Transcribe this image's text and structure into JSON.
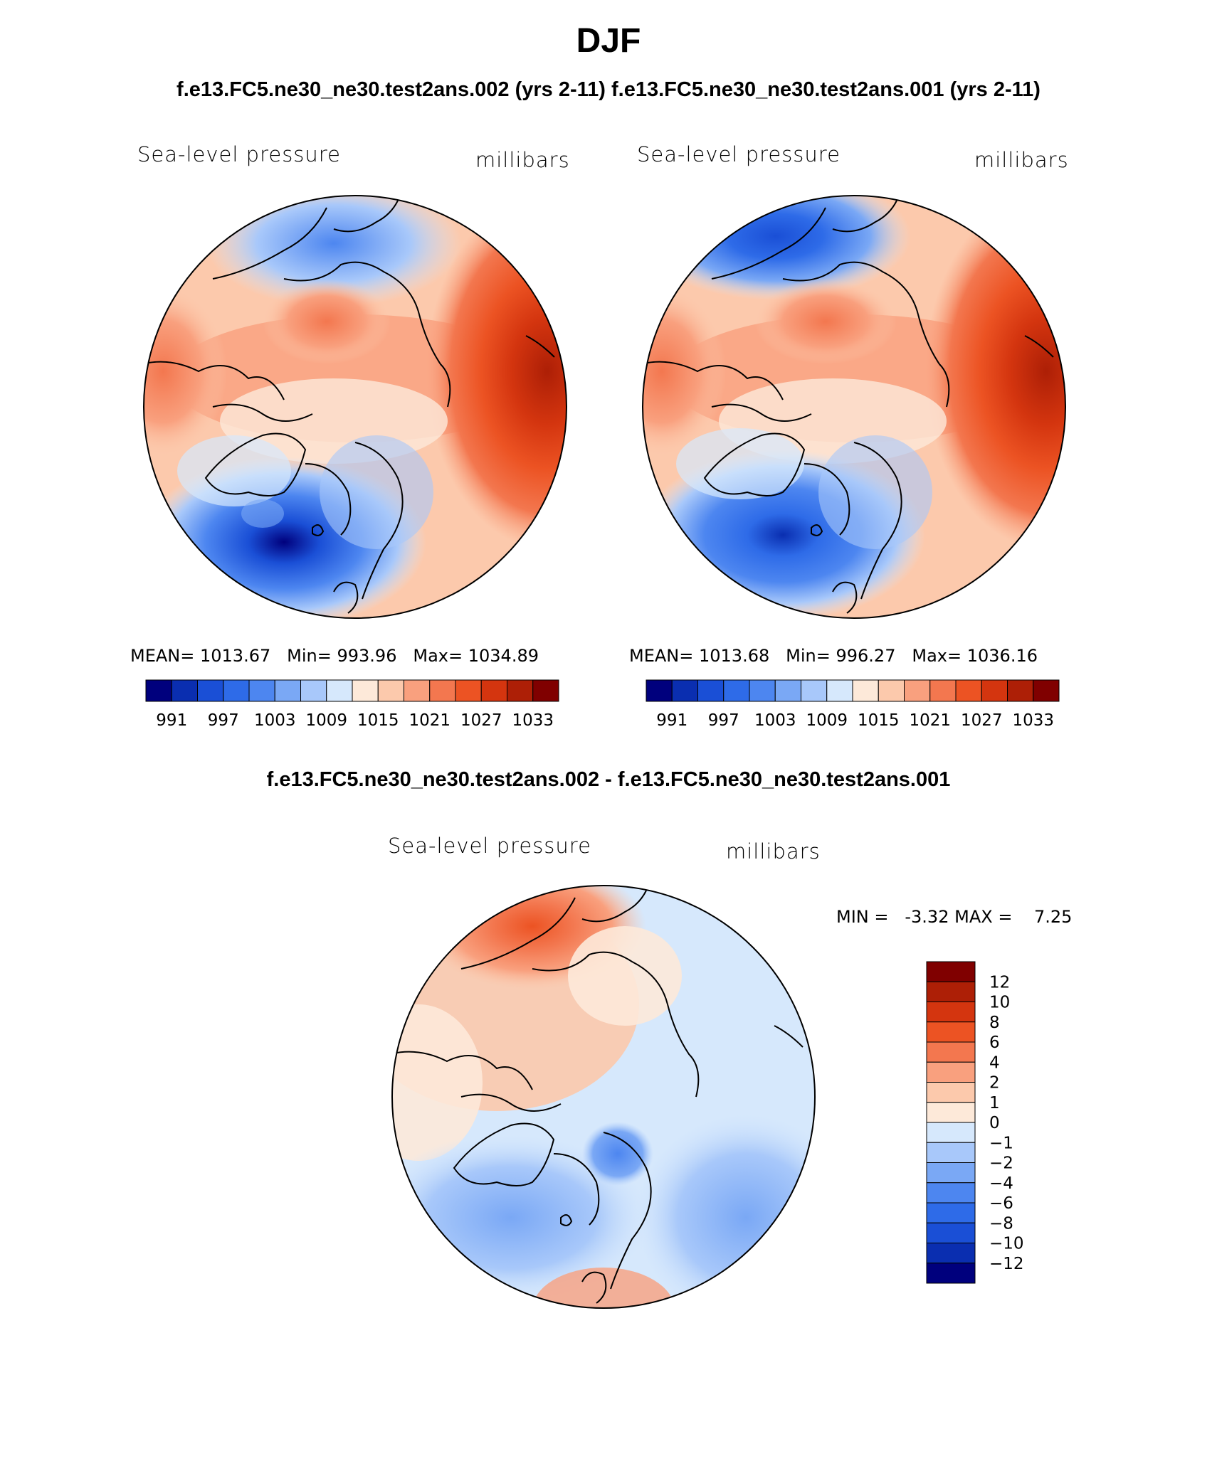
{
  "figure": {
    "season": "DJF",
    "subtitle": "f.e13.FC5.ne30_ne30.test2ans.002 (yrs 2-11) f.e13.FC5.ne30_ne30.test2ans.001 (yrs 2-11)",
    "diff_title": "f.e13.FC5.ne30_ne30.test2ans.002 - f.e13.FC5.ne30_ne30.test2ans.001"
  },
  "chart_data": [
    {
      "type": "heatmap",
      "projection": "north-polar-stereographic",
      "variable": "Sea-level pressure",
      "units": "millibars",
      "case": "f.e13.FC5.ne30_ne30.test2ans.002 (yrs 2-11)",
      "stats": {
        "mean_label": "MEAN=",
        "mean": "1013.67",
        "min_label": "Min=",
        "min": "993.96",
        "max_label": "Max=",
        "max": "1034.89"
      },
      "levels": [
        991,
        994,
        997,
        1000,
        1003,
        1006,
        1009,
        1012,
        1015,
        1018,
        1021,
        1024,
        1027,
        1030,
        1033
      ],
      "tick_labels": [
        "991",
        "997",
        "1003",
        "1009",
        "1015",
        "1021",
        "1027",
        "1033"
      ],
      "colors": [
        "#00007d",
        "#0a2eb0",
        "#1a4fd6",
        "#2e6be8",
        "#4d86f0",
        "#7aa8f5",
        "#a8c8fa",
        "#d6e8fc",
        "#fde9d9",
        "#fcc9ac",
        "#f9a07e",
        "#f3774f",
        "#ec5323",
        "#d4350f",
        "#ad1f06",
        "#800000"
      ]
    },
    {
      "type": "heatmap",
      "projection": "north-polar-stereographic",
      "variable": "Sea-level pressure",
      "units": "millibars",
      "case": "f.e13.FC5.ne30_ne30.test2ans.001 (yrs 2-11)",
      "stats": {
        "mean_label": "MEAN=",
        "mean": "1013.68",
        "min_label": "Min=",
        "min": "996.27",
        "max_label": "Max=",
        "max": "1036.16"
      },
      "levels": [
        991,
        994,
        997,
        1000,
        1003,
        1006,
        1009,
        1012,
        1015,
        1018,
        1021,
        1024,
        1027,
        1030,
        1033
      ],
      "tick_labels": [
        "991",
        "997",
        "1003",
        "1009",
        "1015",
        "1021",
        "1027",
        "1033"
      ],
      "colors": [
        "#00007d",
        "#0a2eb0",
        "#1a4fd6",
        "#2e6be8",
        "#4d86f0",
        "#7aa8f5",
        "#a8c8fa",
        "#d6e8fc",
        "#fde9d9",
        "#fcc9ac",
        "#f9a07e",
        "#f3774f",
        "#ec5323",
        "#d4350f",
        "#ad1f06",
        "#800000"
      ]
    },
    {
      "type": "heatmap",
      "projection": "north-polar-stereographic",
      "variable": "Sea-level pressure",
      "units": "millibars",
      "case": "difference",
      "stats": {
        "min_label": "MIN =",
        "min": "-3.32",
        "max_label": "MAX =",
        "max": "7.25"
      },
      "levels": [
        -12,
        -10,
        -8,
        -6,
        -4,
        -2,
        -1,
        0,
        1,
        2,
        4,
        6,
        8,
        10,
        12
      ],
      "tick_labels": [
        "12",
        "10",
        "8",
        "6",
        "4",
        "2",
        "1",
        "0",
        "−1",
        "−2",
        "−4",
        "−6",
        "−8",
        "−10",
        "−12"
      ],
      "colors": [
        "#800000",
        "#ad1f06",
        "#d4350f",
        "#ec5323",
        "#f3774f",
        "#f9a07e",
        "#fcc9ac",
        "#fde9d9",
        "#d6e8fc",
        "#a8c8fa",
        "#7aa8f5",
        "#4d86f0",
        "#2e6be8",
        "#1a4fd6",
        "#0a2eb0",
        "#00007d"
      ]
    }
  ]
}
